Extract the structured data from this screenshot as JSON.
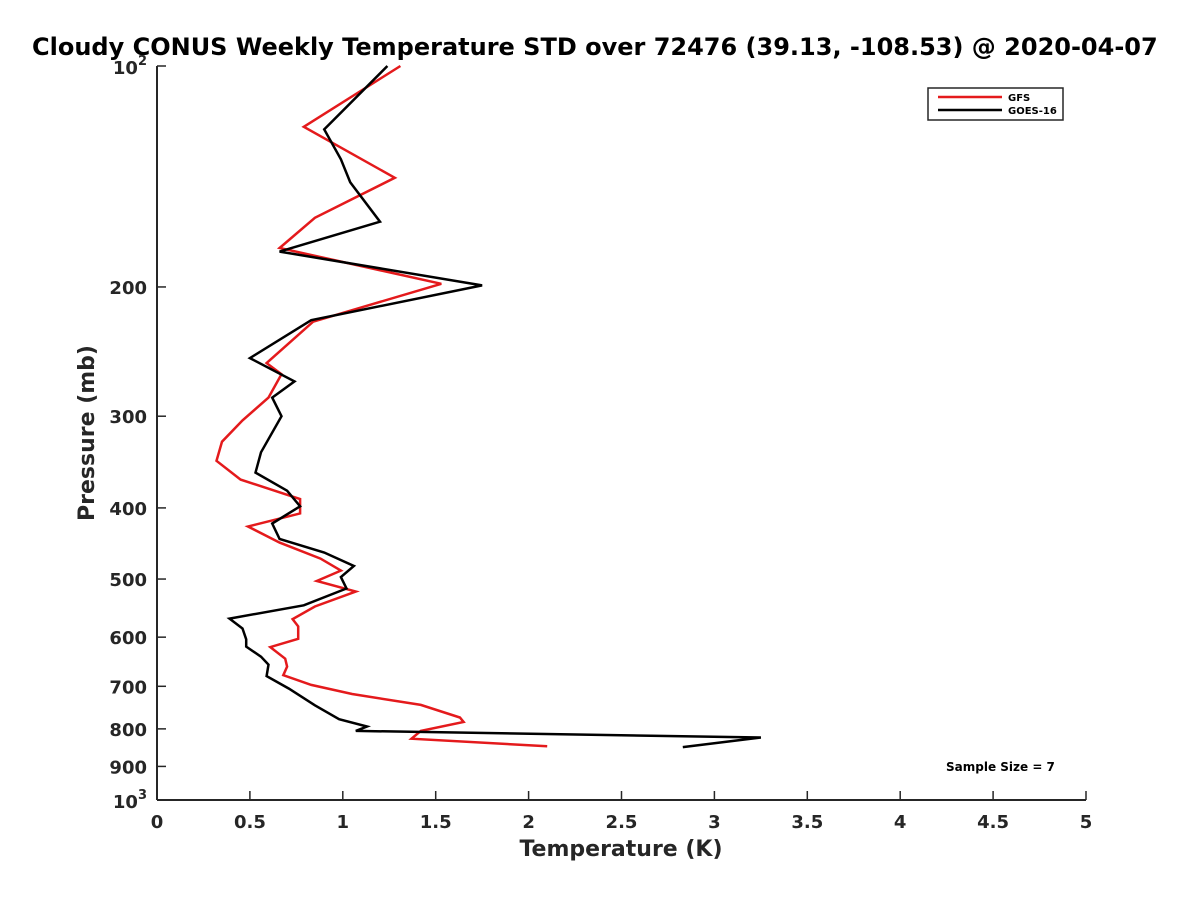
{
  "chart_data": {
    "type": "line",
    "title": "Cloudy CONUS Weekly Temperature STD over 72476 (39.13, -108.53) @ 2020-04-07",
    "xlabel": "Temperature (K)",
    "ylabel": "Pressure (mb)",
    "xlim": [
      0,
      5
    ],
    "ylim": [
      100,
      1000
    ],
    "y_scale": "log",
    "y_reversed": true,
    "grid": false,
    "legend_position": "top-right",
    "x_ticks": [
      {
        "value": 0,
        "label": "0"
      },
      {
        "value": 0.5,
        "label": "0.5"
      },
      {
        "value": 1,
        "label": "1"
      },
      {
        "value": 1.5,
        "label": "1.5"
      },
      {
        "value": 2,
        "label": "2"
      },
      {
        "value": 2.5,
        "label": "2.5"
      },
      {
        "value": 3,
        "label": "3"
      },
      {
        "value": 3.5,
        "label": "3.5"
      },
      {
        "value": 4,
        "label": "4"
      },
      {
        "value": 4.5,
        "label": "4.5"
      },
      {
        "value": 5,
        "label": "5"
      }
    ],
    "y_ticks": [
      {
        "value": 100,
        "base": "10",
        "exp": "2"
      },
      {
        "value": 200,
        "label": "200"
      },
      {
        "value": 300,
        "label": "300"
      },
      {
        "value": 400,
        "label": "400"
      },
      {
        "value": 500,
        "label": "500"
      },
      {
        "value": 600,
        "label": "600"
      },
      {
        "value": 700,
        "label": "700"
      },
      {
        "value": 800,
        "label": "800"
      },
      {
        "value": 900,
        "label": "900"
      },
      {
        "value": 1000,
        "base": "10",
        "exp": "3"
      }
    ],
    "series": [
      {
        "name": "GFS",
        "color": "#e41a1c",
        "points": [
          [
            1.31,
            100
          ],
          [
            0.79,
            121
          ],
          [
            1.28,
            142
          ],
          [
            0.85,
            161
          ],
          [
            0.66,
            177
          ],
          [
            1.53,
            198
          ],
          [
            0.84,
            223
          ],
          [
            0.59,
            254
          ],
          [
            0.67,
            263
          ],
          [
            0.6,
            283
          ],
          [
            0.46,
            304
          ],
          [
            0.35,
            325
          ],
          [
            0.32,
            345
          ],
          [
            0.45,
            366
          ],
          [
            0.77,
            389
          ],
          [
            0.77,
            407
          ],
          [
            0.49,
            424
          ],
          [
            0.66,
            446
          ],
          [
            0.88,
            469
          ],
          [
            0.99,
            487
          ],
          [
            0.86,
            503
          ],
          [
            1.07,
            520
          ],
          [
            0.85,
            545
          ],
          [
            0.73,
            567
          ],
          [
            0.76,
            580
          ],
          [
            0.76,
            603
          ],
          [
            0.61,
            619
          ],
          [
            0.69,
            642
          ],
          [
            0.7,
            658
          ],
          [
            0.68,
            676
          ],
          [
            0.83,
            697
          ],
          [
            1.05,
            717
          ],
          [
            1.42,
            742
          ],
          [
            1.63,
            772
          ],
          [
            1.65,
            783
          ],
          [
            1.42,
            805
          ],
          [
            1.37,
            825
          ],
          [
            2.1,
            845
          ]
        ]
      },
      {
        "name": "GOES-16",
        "color": "#000000",
        "points": [
          [
            1.24,
            100
          ],
          [
            0.9,
            122
          ],
          [
            0.99,
            134
          ],
          [
            1.04,
            144
          ],
          [
            1.2,
            163
          ],
          [
            0.66,
            179
          ],
          [
            1.75,
            199
          ],
          [
            0.83,
            222
          ],
          [
            0.5,
            250
          ],
          [
            0.74,
            269
          ],
          [
            0.62,
            283
          ],
          [
            0.67,
            300
          ],
          [
            0.56,
            336
          ],
          [
            0.53,
            358
          ],
          [
            0.7,
            379
          ],
          [
            0.77,
            398
          ],
          [
            0.62,
            420
          ],
          [
            0.66,
            441
          ],
          [
            0.9,
            460
          ],
          [
            1.06,
            480
          ],
          [
            0.99,
            497
          ],
          [
            1.02,
            515
          ],
          [
            0.79,
            543
          ],
          [
            0.39,
            566
          ],
          [
            0.46,
            584
          ],
          [
            0.48,
            604
          ],
          [
            0.48,
            618
          ],
          [
            0.56,
            638
          ],
          [
            0.6,
            654
          ],
          [
            0.59,
            678
          ],
          [
            0.71,
            705
          ],
          [
            0.85,
            743
          ],
          [
            0.98,
            776
          ],
          [
            1.13,
            794
          ],
          [
            1.07,
            805
          ],
          [
            3.25,
            822
          ],
          [
            2.83,
            847
          ]
        ]
      }
    ],
    "annotations": [
      {
        "text": "Sample Size = 7"
      }
    ]
  }
}
